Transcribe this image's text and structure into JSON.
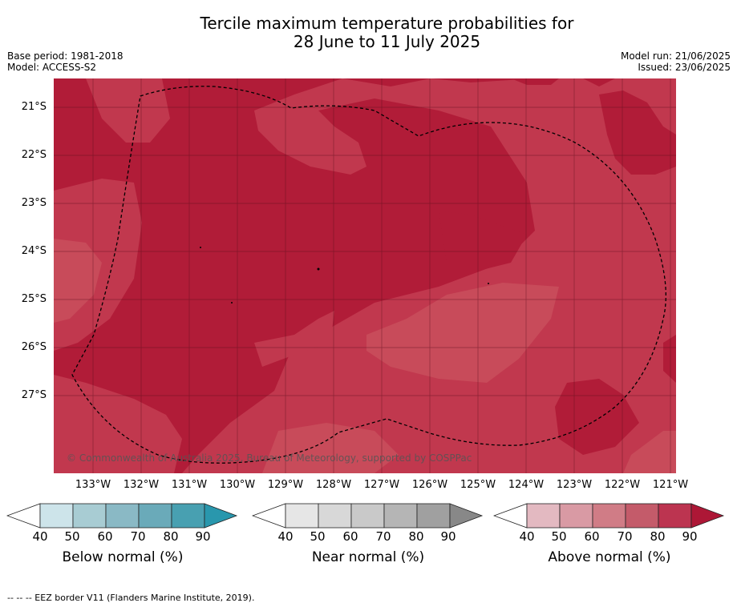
{
  "title_line1": "Tercile maximum temperature probabilities for",
  "title_line2": "28 June to 11 July 2025",
  "base_period": "Base period: 1981-2018",
  "model": "Model: ACCESS-S2",
  "model_run": "Model run: 21/06/2025",
  "issued": "Issued: 23/06/2025",
  "map": {
    "lat_labels": [
      "21°S",
      "22°S",
      "23°S",
      "24°S",
      "25°S",
      "26°S",
      "27°S"
    ],
    "lon_labels": [
      "133°W",
      "132°W",
      "131°W",
      "130°W",
      "129°W",
      "128°W",
      "127°W",
      "126°W",
      "125°W",
      "124°W",
      "123°W",
      "122°W",
      "121°W"
    ],
    "copyright": "© Commonwealth of Australia 2025, Bureau of Meteorology, supported by COSPPac",
    "colors": {
      "above_80": "#b11c38",
      "above_70": "#c1384e",
      "above_60": "#c84b5a"
    }
  },
  "legends": [
    {
      "label": "Below normal (%)",
      "ticks": [
        "40",
        "50",
        "60",
        "70",
        "80",
        "90"
      ],
      "colors": [
        "#ffffff",
        "#cde4ea",
        "#a8ccd3",
        "#8ab9c5",
        "#6aaab9",
        "#48a0b1",
        "#2997ad"
      ]
    },
    {
      "label": "Near normal (%)",
      "ticks": [
        "40",
        "50",
        "60",
        "70",
        "80",
        "90"
      ],
      "colors": [
        "#ffffff",
        "#e6e6e6",
        "#d8d8d8",
        "#c9c9c9",
        "#b5b5b5",
        "#a0a0a0",
        "#888888"
      ]
    },
    {
      "label": "Above normal (%)",
      "ticks": [
        "40",
        "50",
        "60",
        "70",
        "80",
        "90"
      ],
      "colors": [
        "#ffffff",
        "#e3b9c1",
        "#d99aa4",
        "#d07c86",
        "#c45b6a",
        "#bc3450",
        "#ad1736"
      ]
    }
  ],
  "footer": "--  --  -- EEZ border V11 (Flanders Marine Institute, 2019)."
}
